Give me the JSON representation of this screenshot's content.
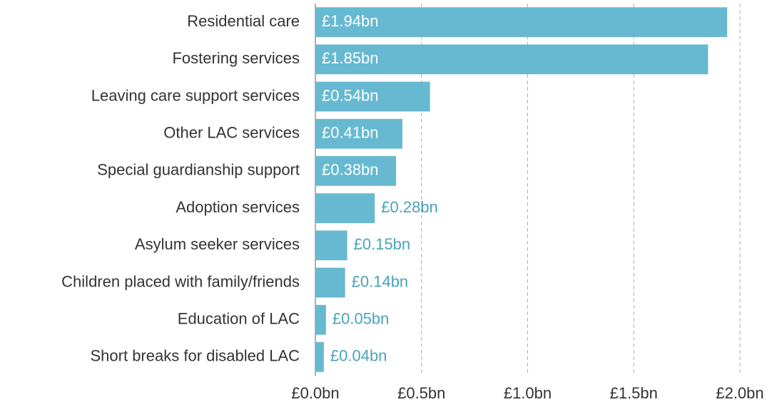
{
  "chart_data": {
    "type": "bar",
    "orientation": "horizontal",
    "categories": [
      "Residential care",
      "Fostering services",
      "Leaving care support services",
      "Other LAC services",
      "Special guardianship support",
      "Adoption services",
      "Asylum seeker services",
      "Children placed with family/friends",
      "Education of LAC",
      "Short breaks for disabled LAC"
    ],
    "values": [
      1.94,
      1.85,
      0.54,
      0.41,
      0.38,
      0.28,
      0.15,
      0.14,
      0.05,
      0.04
    ],
    "value_labels": [
      "£1.94bn",
      "£1.85bn",
      "£0.54bn",
      "£0.41bn",
      "£0.38bn",
      "£0.28bn",
      "£0.15bn",
      "£0.14bn",
      "£0.05bn",
      "£0.04bn"
    ],
    "color": "#66b9d0",
    "xlim": [
      0,
      2
    ],
    "xticks": [
      {
        "value": 0,
        "label": "£0.0bn"
      },
      {
        "value": 0.5,
        "label": "£0.5bn"
      },
      {
        "value": 1,
        "label": "£1.0bn"
      },
      {
        "value": 1.5,
        "label": "£1.5bn"
      },
      {
        "value": 2,
        "label": "£2.0bn"
      }
    ],
    "grid": true
  }
}
